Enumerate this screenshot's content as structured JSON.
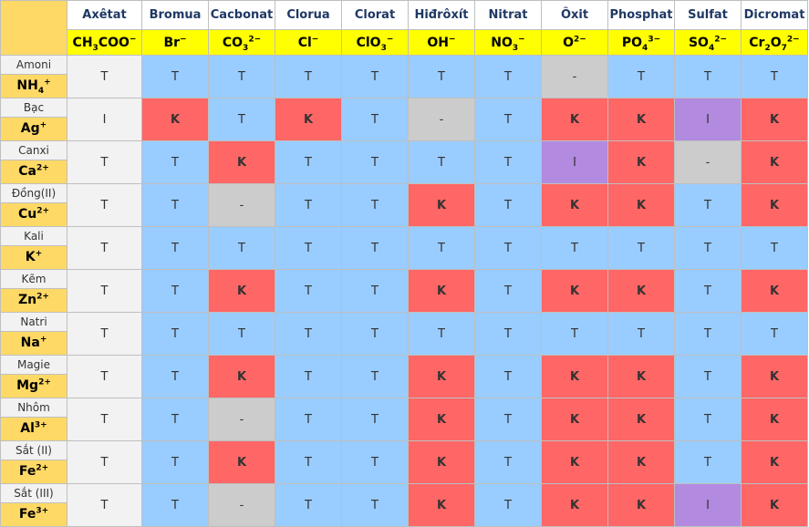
{
  "table": {
    "cell_colors": {
      "T": "#99ccff",
      "K": "#ff6666",
      "I": "#b28ae0",
      "-": "#cccccc"
    },
    "columns": [
      {
        "name": "Axêtat",
        "formula": [
          {
            "t": "CH"
          },
          {
            "sub": "3"
          },
          {
            "t": "COO"
          },
          {
            "sup": "−"
          }
        ],
        "cell_color": "#f2f2f2"
      },
      {
        "name": "Bromua",
        "formula": [
          {
            "t": "Br"
          },
          {
            "sup": "−"
          }
        ]
      },
      {
        "name": "Cacbonat",
        "formula": [
          {
            "t": "CO"
          },
          {
            "sub": "3"
          },
          {
            "sup": "2−"
          }
        ]
      },
      {
        "name": "Clorua",
        "formula": [
          {
            "t": "Cl"
          },
          {
            "sup": "−"
          }
        ]
      },
      {
        "name": "Clorat",
        "formula": [
          {
            "t": "ClO"
          },
          {
            "sub": "3"
          },
          {
            "sup": "−"
          }
        ]
      },
      {
        "name": "Hiđrôxít",
        "formula": [
          {
            "t": "OH"
          },
          {
            "sup": "−"
          }
        ]
      },
      {
        "name": "Nitrat",
        "formula": [
          {
            "t": "NO"
          },
          {
            "sub": "3"
          },
          {
            "sup": "−"
          }
        ]
      },
      {
        "name": "Ôxit",
        "formula": [
          {
            "t": "O"
          },
          {
            "sup": "2−"
          }
        ]
      },
      {
        "name": "Phosphat",
        "formula": [
          {
            "t": "PO"
          },
          {
            "sub": "4"
          },
          {
            "sup": "3−"
          }
        ]
      },
      {
        "name": "Sulfat",
        "formula": [
          {
            "t": "SO"
          },
          {
            "sub": "4"
          },
          {
            "sup": "2−"
          }
        ]
      },
      {
        "name": "Dicromat",
        "formula": [
          {
            "t": "Cr"
          },
          {
            "sub": "2"
          },
          {
            "t": "O"
          },
          {
            "sub": "7"
          },
          {
            "sup": "2−"
          }
        ]
      }
    ],
    "rows": [
      {
        "name": "Amoni",
        "formula": [
          {
            "t": "NH"
          },
          {
            "sub": "4"
          },
          {
            "sup": "+"
          }
        ],
        "cells": [
          "T",
          "T",
          "T",
          "T",
          "T",
          "T",
          "T",
          "-",
          "T",
          "T",
          "T"
        ]
      },
      {
        "name": "Bạc",
        "formula": [
          {
            "t": "Ag"
          },
          {
            "sup": "+"
          }
        ],
        "cells": [
          "I",
          "K",
          "T",
          "K",
          "T",
          "-",
          "T",
          "K",
          "K",
          "I",
          "K"
        ]
      },
      {
        "name": "Canxi",
        "formula": [
          {
            "t": "Ca"
          },
          {
            "sup": "2+"
          }
        ],
        "cells": [
          "T",
          "T",
          "K",
          "T",
          "T",
          "T",
          "T",
          "I",
          "K",
          "-",
          "K"
        ]
      },
      {
        "name": "Đồng(II)",
        "formula": [
          {
            "t": "Cu"
          },
          {
            "sup": "2+"
          }
        ],
        "cells": [
          "T",
          "T",
          "-",
          "T",
          "T",
          "K",
          "T",
          "K",
          "K",
          "T",
          "K"
        ]
      },
      {
        "name": "Kali",
        "formula": [
          {
            "t": "K"
          },
          {
            "sup": "+"
          }
        ],
        "cells": [
          "T",
          "T",
          "T",
          "T",
          "T",
          "T",
          "T",
          "T",
          "T",
          "T",
          "T"
        ]
      },
      {
        "name": "Kẽm",
        "formula": [
          {
            "t": "Zn"
          },
          {
            "sup": "2+"
          }
        ],
        "cells": [
          "T",
          "T",
          "K",
          "T",
          "T",
          "K",
          "T",
          "K",
          "K",
          "T",
          "K"
        ]
      },
      {
        "name": "Natri",
        "formula": [
          {
            "t": "Na"
          },
          {
            "sup": "+"
          }
        ],
        "cells": [
          "T",
          "T",
          "T",
          "T",
          "T",
          "T",
          "T",
          "T",
          "T",
          "T",
          "T"
        ]
      },
      {
        "name": "Magie",
        "formula": [
          {
            "t": "Mg"
          },
          {
            "sup": "2+"
          }
        ],
        "cells": [
          "T",
          "T",
          "K",
          "T",
          "T",
          "K",
          "T",
          "K",
          "K",
          "T",
          "K"
        ]
      },
      {
        "name": "Nhôm",
        "formula": [
          {
            "t": "Al"
          },
          {
            "sup": "3+"
          }
        ],
        "cells": [
          "T",
          "T",
          "-",
          "T",
          "T",
          "K",
          "T",
          "K",
          "K",
          "T",
          "K"
        ]
      },
      {
        "name": "Sắt (II)",
        "formula": [
          {
            "t": "Fe"
          },
          {
            "sup": "2+"
          }
        ],
        "cells": [
          "T",
          "T",
          "K",
          "T",
          "T",
          "K",
          "T",
          "K",
          "K",
          "T",
          "K"
        ]
      },
      {
        "name": "Sắt (III)",
        "formula": [
          {
            "t": "Fe"
          },
          {
            "sup": "3+"
          }
        ],
        "cells": [
          "T",
          "T",
          "-",
          "T",
          "T",
          "K",
          "T",
          "K",
          "K",
          "I",
          "K"
        ]
      }
    ]
  }
}
